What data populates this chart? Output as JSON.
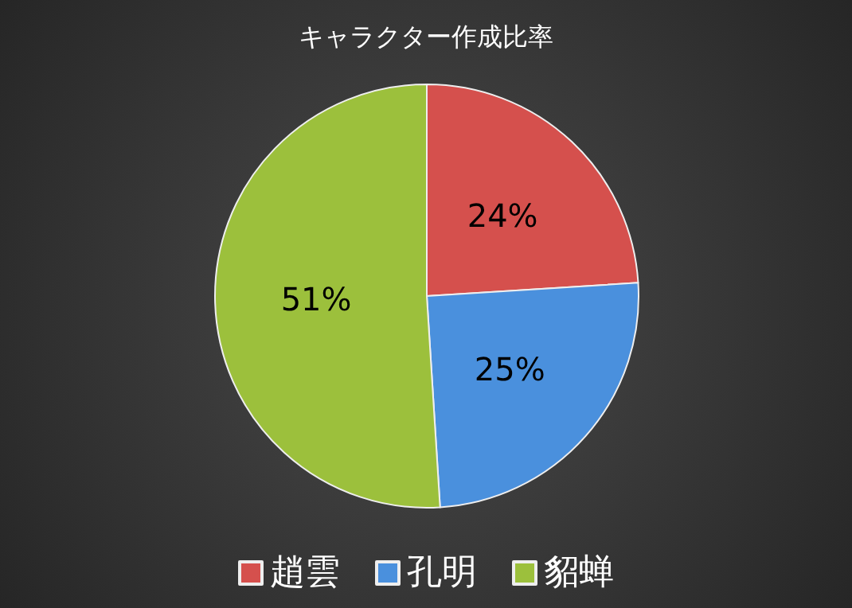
{
  "chart_data": {
    "type": "pie",
    "title": "キャラクター作成比率",
    "categories": [
      "趙雲",
      "孔明",
      "貂蝉"
    ],
    "values": [
      24,
      25,
      51
    ],
    "colors": [
      "#d5504d",
      "#4a90dd",
      "#9cc03c"
    ],
    "value_labels": [
      "24%",
      "25%",
      "51%"
    ],
    "legend": "bottom"
  }
}
